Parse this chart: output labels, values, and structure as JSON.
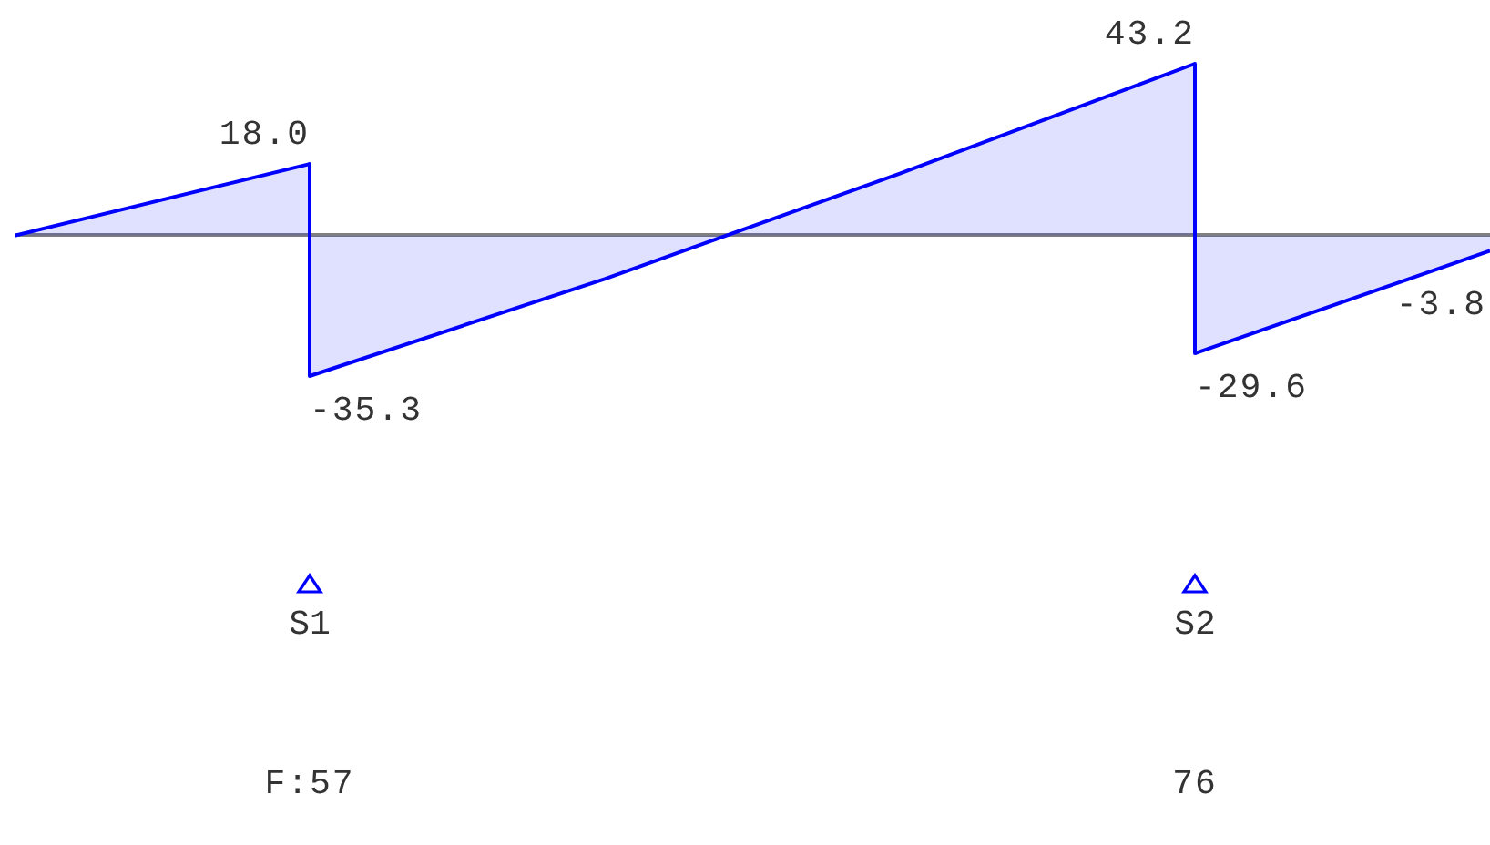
{
  "chart_data": {
    "type": "area",
    "categories": [
      null,
      "S1",
      null,
      null,
      "S2",
      null
    ],
    "series": [
      {
        "color": "#0000ff",
        "values": [
          0,
          18.0,
          null,
          null,
          null,
          null
        ],
        "value_labels": [
          null,
          "18.0",
          null,
          null,
          null,
          null
        ]
      },
      {
        "color": "#0000ff",
        "values": [
          null,
          -35.3,
          -10.9,
          15.6,
          43.2,
          null
        ],
        "value_labels": [
          null,
          "-35.3",
          null,
          null,
          "43.2",
          null
        ]
      },
      {
        "color": "#0000ff",
        "values": [
          null,
          null,
          null,
          null,
          -29.6,
          -3.8
        ],
        "value_labels": [
          null,
          null,
          null,
          null,
          "-29.6",
          "-3.8"
        ]
      }
    ],
    "tick_labels": "x",
    "marker": "none",
    "annotations": [
      "F:57",
      "76"
    ]
  }
}
